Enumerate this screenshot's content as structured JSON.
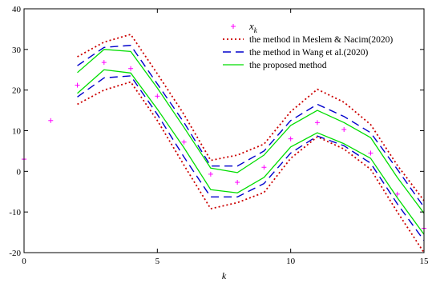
{
  "chart_data": {
    "type": "line",
    "xlabel": "k",
    "ylabel": "",
    "xlim": [
      0,
      15
    ],
    "ylim": [
      -20,
      40
    ],
    "xticks": [
      0,
      5,
      10,
      15
    ],
    "yticks": [
      -20,
      -10,
      0,
      10,
      20,
      30,
      40
    ],
    "grid": false,
    "legend_position": "top-right",
    "legend": [
      {
        "label_main": "x",
        "label_sub": "k",
        "style": "marker",
        "color": "#ff00ff"
      },
      {
        "label": "the method in Meslem & Nacim(2020)",
        "style": "dotted",
        "color": "#cc0000"
      },
      {
        "label": "the method in Wang et al.(2020)",
        "style": "dashed",
        "color": "#0000cc"
      },
      {
        "label": "the proposed method",
        "style": "solid",
        "color": "#00dd00"
      }
    ],
    "points": {
      "x": [
        0,
        1,
        2,
        3,
        4,
        5,
        6,
        7,
        8,
        9,
        10,
        11,
        12,
        13,
        14,
        15
      ],
      "y": [
        3.0,
        12.5,
        21.2,
        26.8,
        25.3,
        18.5,
        7.2,
        -0.7,
        -2.7,
        1.0,
        8.0,
        12.0,
        10.3,
        4.5,
        -5.6,
        -14.0
      ]
    },
    "series": [
      {
        "style": "dotted",
        "color": "#cc0000",
        "x": [
          2,
          3,
          4,
          5,
          6,
          7,
          8,
          9,
          10,
          11,
          12,
          13,
          14,
          15
        ],
        "upper": [
          28.2,
          31.8,
          33.7,
          24.0,
          14.0,
          2.7,
          4.0,
          6.7,
          14.7,
          20.2,
          17.0,
          11.5,
          1.5,
          -7.2
        ],
        "lower": [
          16.5,
          20.0,
          22.0,
          12.5,
          1.5,
          -9.2,
          -7.7,
          -5.2,
          3.2,
          8.5,
          5.5,
          0.5,
          -10.0,
          -20.0
        ]
      },
      {
        "style": "dashed",
        "color": "#0000cc",
        "x": [
          2,
          3,
          4,
          5,
          6,
          7,
          8,
          9,
          10,
          11,
          12,
          13,
          14,
          15
        ],
        "upper": [
          26.0,
          30.5,
          31.0,
          21.5,
          12.0,
          1.3,
          1.3,
          5.0,
          12.5,
          16.5,
          13.5,
          9.5,
          0.5,
          -8.8
        ],
        "lower": [
          18.3,
          23.0,
          23.5,
          14.0,
          3.5,
          -6.3,
          -6.3,
          -3.0,
          4.5,
          8.7,
          6.3,
          2.0,
          -8.0,
          -17.0
        ]
      },
      {
        "style": "solid",
        "color": "#00dd00",
        "x": [
          2,
          3,
          4,
          5,
          6,
          7,
          8,
          9,
          10,
          11,
          12,
          13,
          14,
          15
        ],
        "upper": [
          24.3,
          30.0,
          29.5,
          20.5,
          10.8,
          0.8,
          -0.3,
          4.0,
          11.3,
          15.0,
          12.0,
          8.3,
          -1.5,
          -10.3
        ],
        "lower": [
          19.2,
          25.0,
          24.2,
          15.3,
          5.8,
          -4.5,
          -5.3,
          -1.5,
          6.0,
          9.5,
          6.8,
          3.2,
          -6.5,
          -15.5
        ]
      }
    ]
  }
}
